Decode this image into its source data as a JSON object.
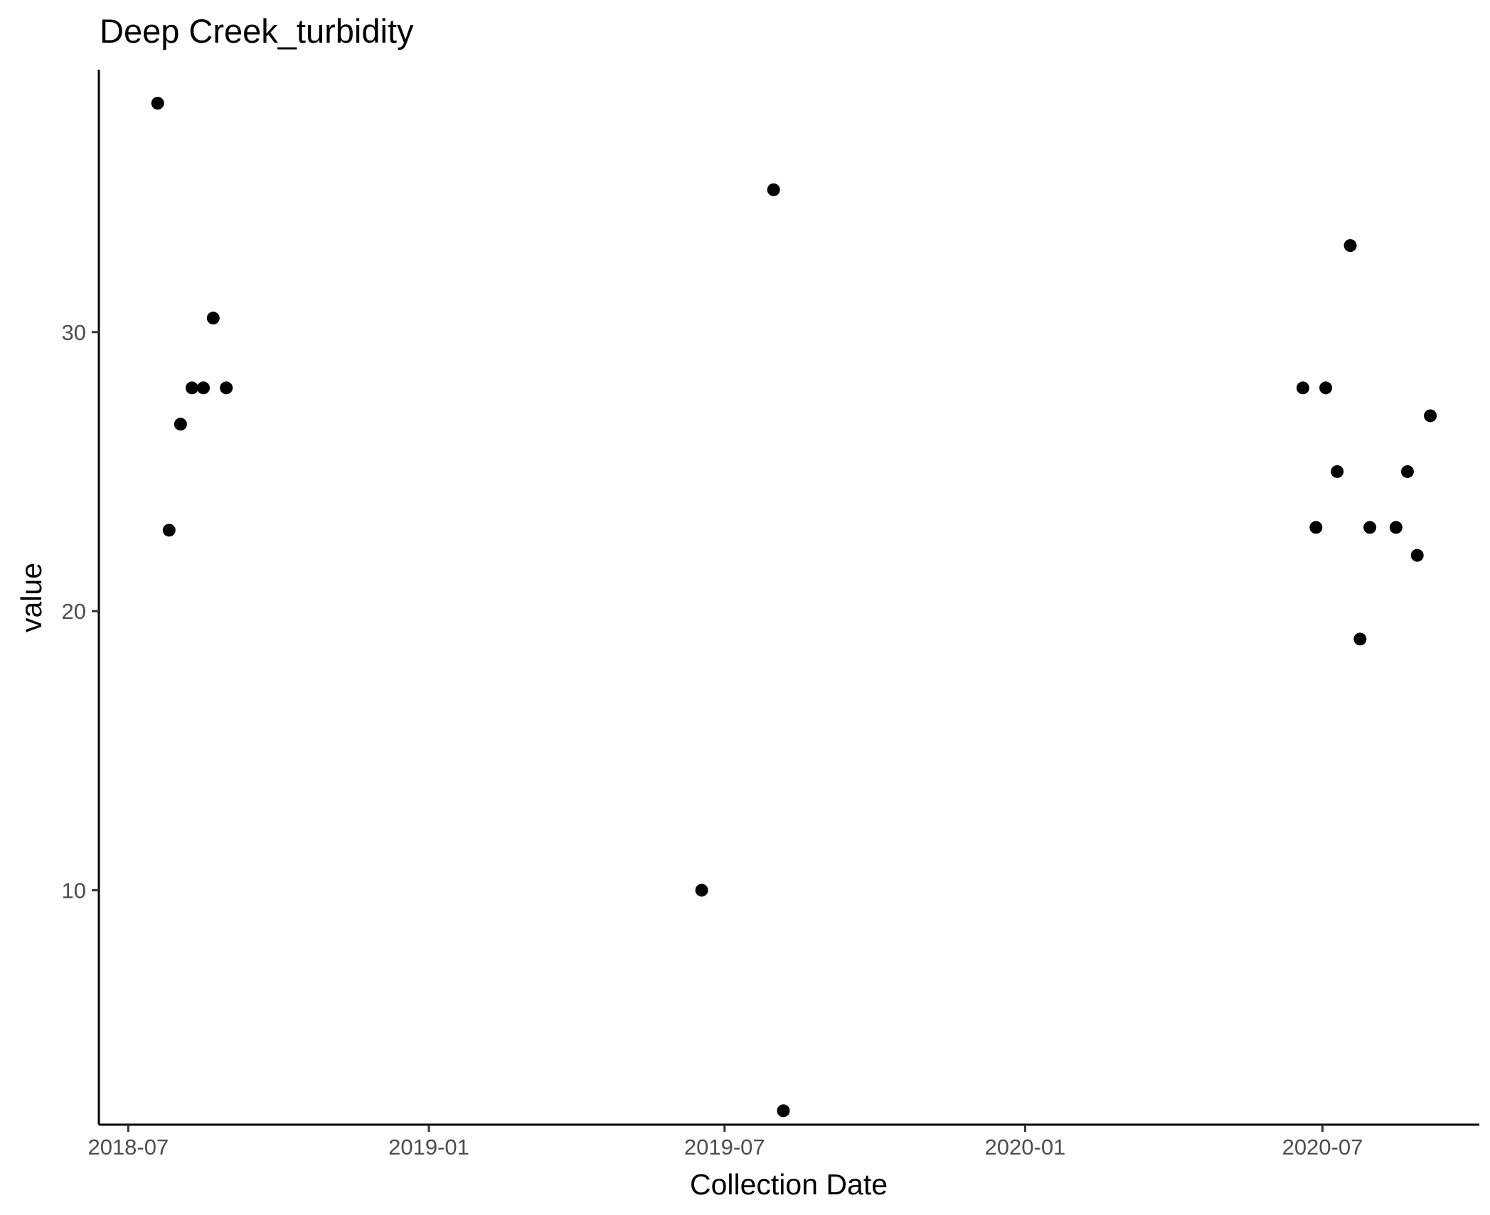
{
  "chart_data": {
    "type": "scatter",
    "title": "Deep Creek_turbidity",
    "xlabel": "Collection Date",
    "ylabel": "value",
    "x_type": "date",
    "xlim": [
      "2018-06-13",
      "2020-10-05"
    ],
    "ylim": [
      1.6,
      39.4
    ],
    "x_ticks": [
      {
        "value": "2018-07-01",
        "label": "2018-07"
      },
      {
        "value": "2019-01-01",
        "label": "2019-01"
      },
      {
        "value": "2019-07-01",
        "label": "2019-07"
      },
      {
        "value": "2020-01-01",
        "label": "2020-01"
      },
      {
        "value": "2020-07-01",
        "label": "2020-07"
      }
    ],
    "y_ticks": [
      {
        "value": 10,
        "label": "10"
      },
      {
        "value": 20,
        "label": "20"
      },
      {
        "value": 30,
        "label": "30"
      }
    ],
    "grid": false,
    "legend": "none",
    "series": [
      {
        "color": "#000000",
        "points": [
          {
            "x": "2018-07-19",
            "y": 38.2
          },
          {
            "x": "2018-07-26",
            "y": 22.9
          },
          {
            "x": "2018-08-02",
            "y": 26.7
          },
          {
            "x": "2018-08-09",
            "y": 28.0
          },
          {
            "x": "2018-08-16",
            "y": 28.0
          },
          {
            "x": "2018-08-22",
            "y": 30.5
          },
          {
            "x": "2018-08-30",
            "y": 28.0
          },
          {
            "x": "2019-06-17",
            "y": 10.0
          },
          {
            "x": "2019-07-31",
            "y": 35.1
          },
          {
            "x": "2019-08-06",
            "y": 2.1
          },
          {
            "x": "2020-06-19",
            "y": 28.0
          },
          {
            "x": "2020-06-27",
            "y": 23.0
          },
          {
            "x": "2020-07-03",
            "y": 28.0
          },
          {
            "x": "2020-07-10",
            "y": 25.0
          },
          {
            "x": "2020-07-18",
            "y": 33.1
          },
          {
            "x": "2020-07-24",
            "y": 19.0
          },
          {
            "x": "2020-07-30",
            "y": 23.0
          },
          {
            "x": "2020-08-15",
            "y": 23.0
          },
          {
            "x": "2020-08-22",
            "y": 25.0
          },
          {
            "x": "2020-08-28",
            "y": 22.0
          },
          {
            "x": "2020-09-05",
            "y": 27.0
          }
        ]
      }
    ]
  }
}
